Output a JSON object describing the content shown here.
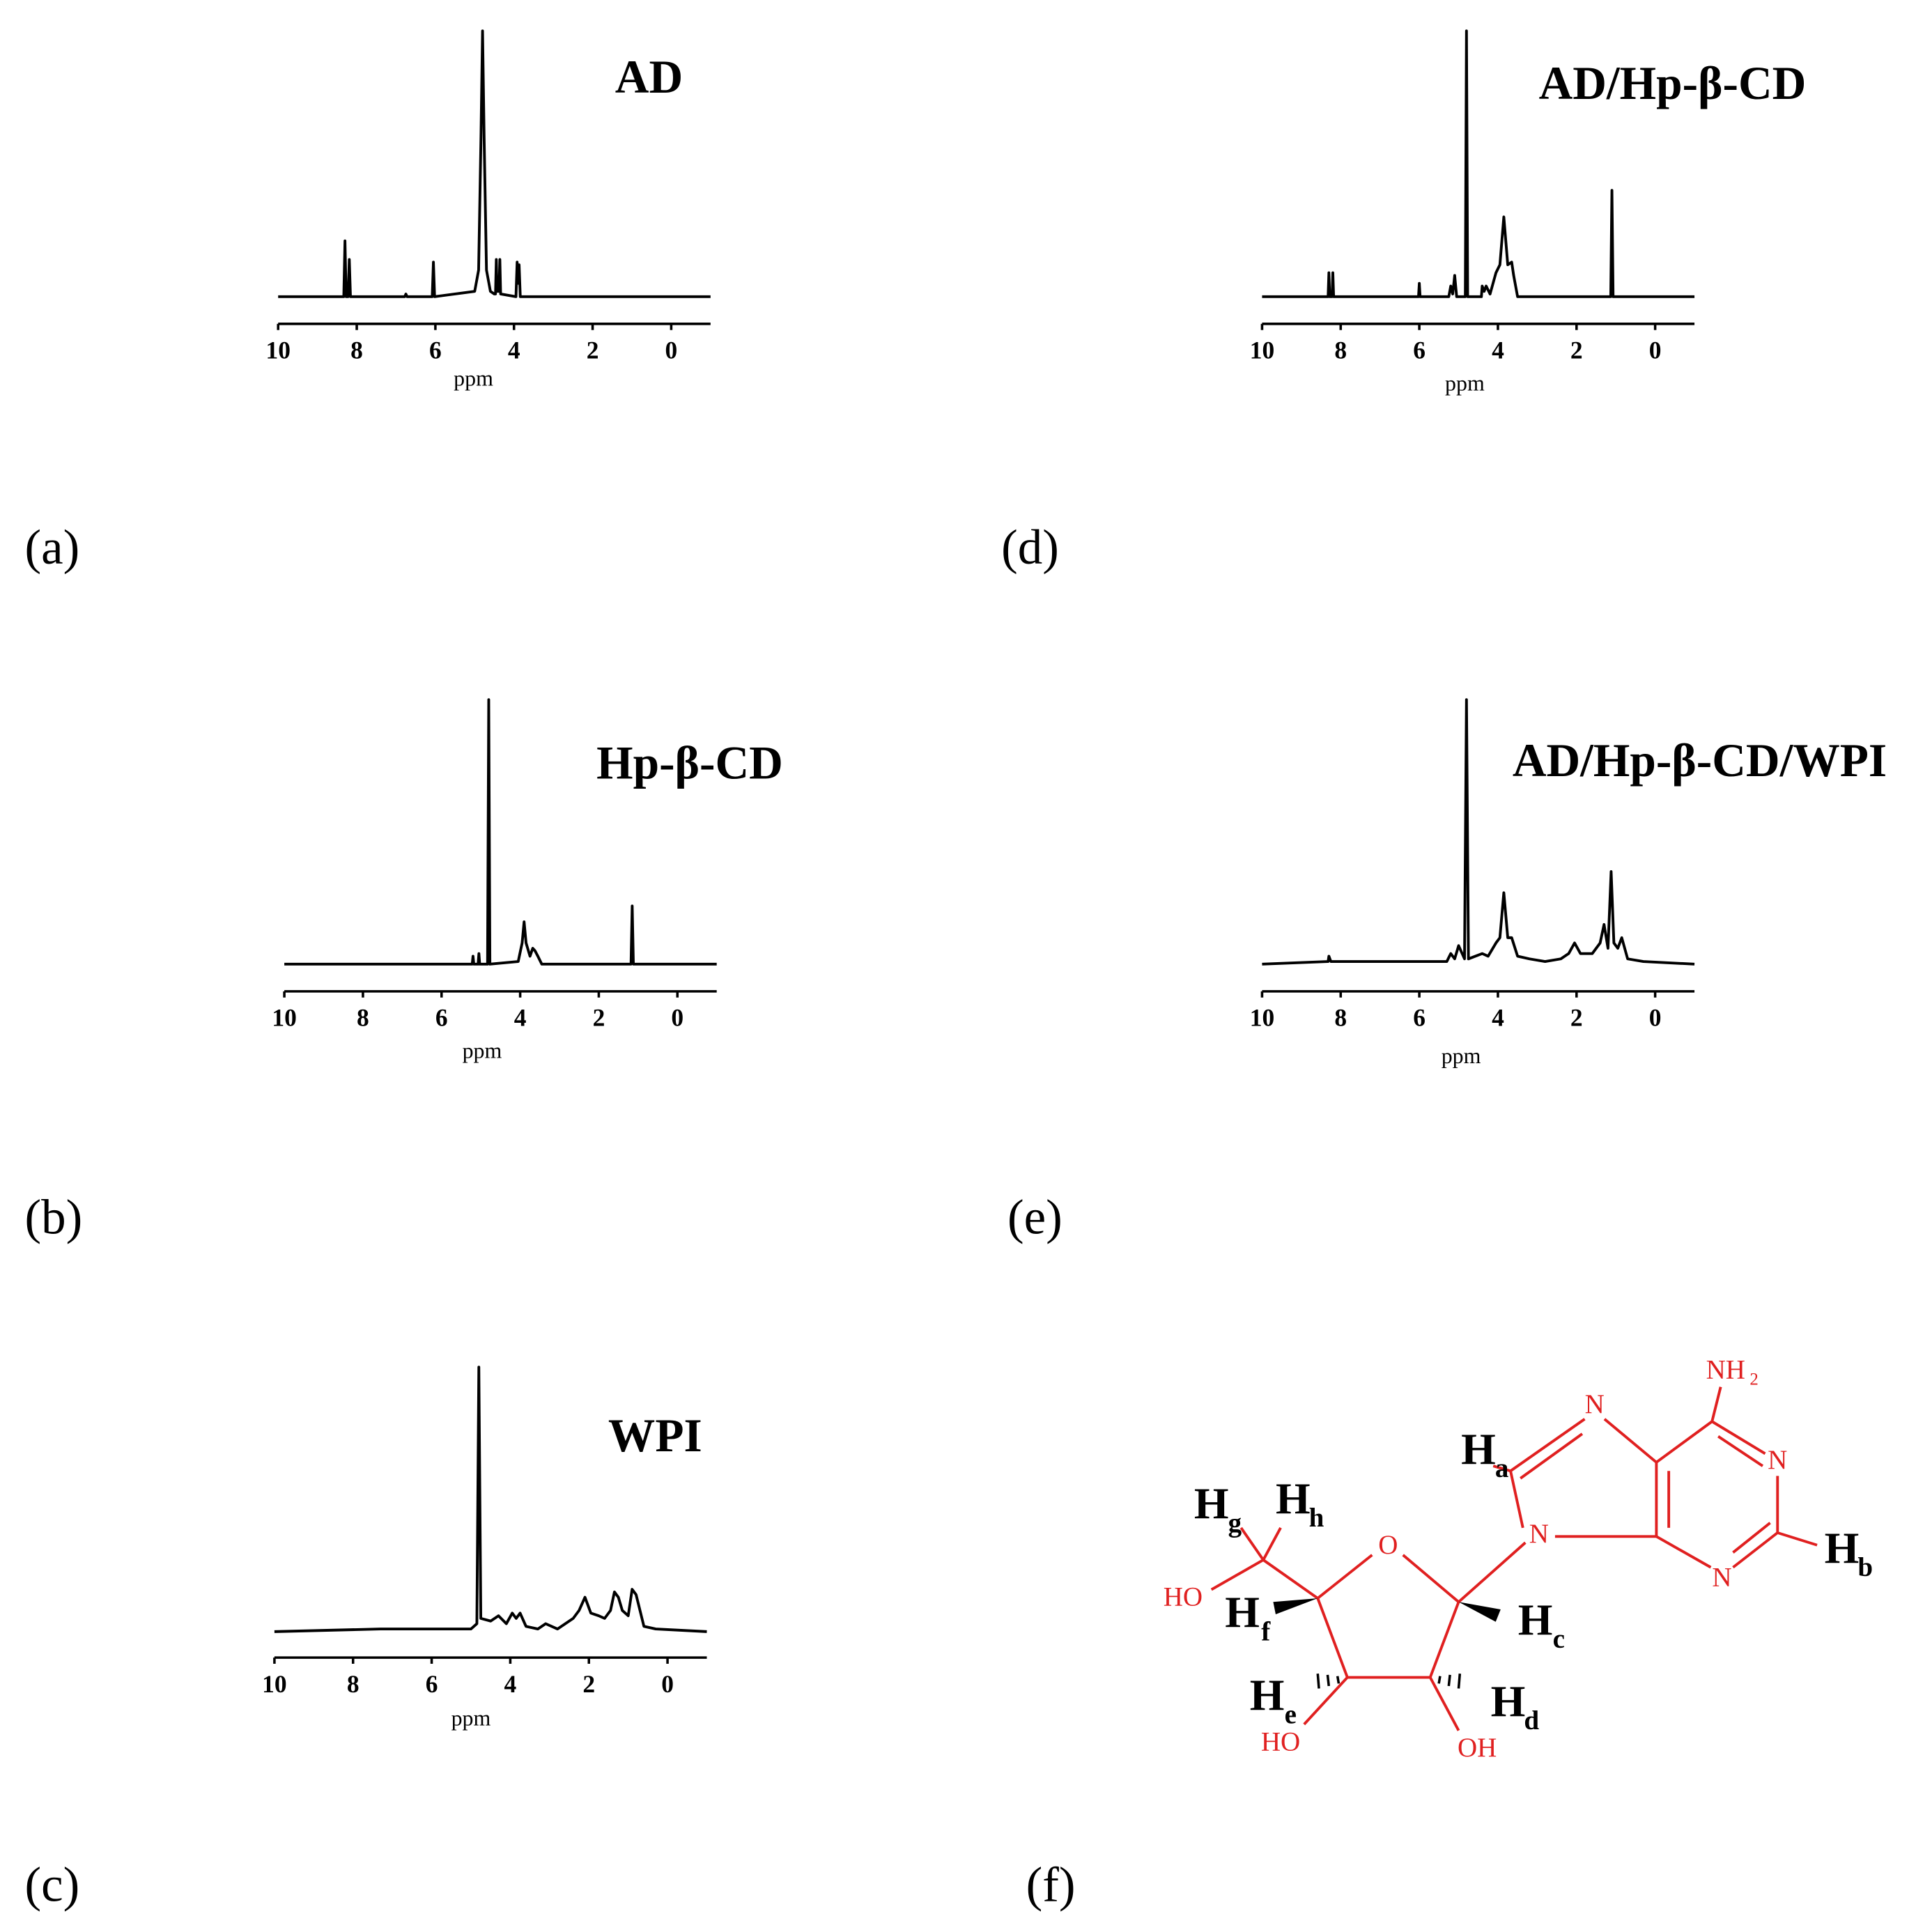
{
  "chart_data": [
    {
      "type": "line",
      "title": "AD",
      "label": "(a)",
      "xlabel": "ppm",
      "xlim": [
        10,
        -1
      ],
      "xticks": [
        10,
        8,
        6,
        4,
        2,
        0
      ],
      "ylim": [
        0,
        100
      ],
      "color": "#000000",
      "x": [
        10,
        8.33,
        8.3,
        8.27,
        8.22,
        8.19,
        8.16,
        6.78,
        6.75,
        6.72,
        6.08,
        6.05,
        6.02,
        5.0,
        4.9,
        4.84,
        4.8,
        4.76,
        4.7,
        4.6,
        4.5,
        4.47,
        4.45,
        4.43,
        4.38,
        4.36,
        4.34,
        3.95,
        3.92,
        3.9,
        3.87,
        3.84,
        -1
      ],
      "values": [
        0,
        0,
        21,
        0,
        0,
        14,
        0,
        0,
        1,
        0,
        0,
        13,
        0,
        2,
        10,
        60,
        100,
        60,
        10,
        2,
        1,
        1,
        14,
        2,
        2,
        14,
        1,
        0,
        13,
        5,
        12,
        0,
        0
      ]
    },
    {
      "type": "line",
      "title": "Hp-β-CD",
      "label": "(b)",
      "xlabel": "ppm",
      "xlim": [
        10,
        -1
      ],
      "xticks": [
        10,
        8,
        6,
        4,
        2,
        0
      ],
      "ylim": [
        0,
        100
      ],
      "color": "#000000",
      "x": [
        10,
        5.22,
        5.2,
        5.18,
        5.07,
        5.05,
        5.03,
        4.83,
        4.8,
        4.77,
        4.05,
        3.95,
        3.9,
        3.85,
        3.75,
        3.68,
        3.62,
        3.55,
        3.45,
        1.18,
        1.15,
        1.12,
        -1
      ],
      "values": [
        0,
        0,
        3,
        0,
        0,
        4,
        0,
        0,
        100,
        0,
        1,
        8,
        16,
        8,
        3,
        6,
        5,
        3,
        0,
        0,
        22,
        0,
        0
      ]
    },
    {
      "type": "line",
      "title": "WPI",
      "label": "(c)",
      "xlabel": "ppm",
      "xlim": [
        10,
        -1
      ],
      "xticks": [
        10,
        8,
        6,
        4,
        2,
        0
      ],
      "ylim": [
        0,
        100
      ],
      "color": "#000000",
      "x": [
        10,
        7.3,
        5,
        4.85,
        4.8,
        4.75,
        4.5,
        4.3,
        4.1,
        3.95,
        3.85,
        3.75,
        3.6,
        3.3,
        3.1,
        2.8,
        2.4,
        2.25,
        2.1,
        1.95,
        1.75,
        1.6,
        1.45,
        1.35,
        1.25,
        1.15,
        1.0,
        0.9,
        0.8,
        0.6,
        0.3,
        -1
      ],
      "values": [
        0,
        1,
        1,
        3,
        100,
        5,
        4,
        6,
        3,
        7,
        5,
        7,
        2,
        1,
        3,
        1,
        5,
        8,
        13,
        7,
        6,
        5,
        8,
        15,
        13,
        8,
        6,
        16,
        14,
        2,
        1,
        0
      ]
    },
    {
      "type": "line",
      "title": "AD/Hp-β-CD",
      "label": "(d)",
      "xlabel": "ppm",
      "xlim": [
        10,
        -1
      ],
      "xticks": [
        10,
        8,
        6,
        4,
        2,
        0
      ],
      "ylim": [
        0,
        100
      ],
      "color": "#000000",
      "x": [
        10,
        8.32,
        8.3,
        8.28,
        8.22,
        8.2,
        8.18,
        6.02,
        6.0,
        5.98,
        5.25,
        5.2,
        5.15,
        5.1,
        5.05,
        4.83,
        4.8,
        4.77,
        4.42,
        4.4,
        4.35,
        4.3,
        4.2,
        4.05,
        3.95,
        3.85,
        3.75,
        3.65,
        3.6,
        3.5,
        1.13,
        1.1,
        1.07,
        -1
      ],
      "values": [
        0,
        0,
        9,
        0,
        0,
        9,
        0,
        0,
        5,
        0,
        0,
        4,
        1,
        8,
        0,
        0,
        100,
        0,
        0,
        4,
        2,
        4,
        1,
        9,
        12,
        30,
        12,
        13,
        8,
        0,
        0,
        40,
        0,
        0
      ]
    },
    {
      "type": "line",
      "title": "AD/Hp-β-CD/WPI",
      "label": "(e)",
      "xlabel": "ppm",
      "xlim": [
        10,
        -1
      ],
      "xticks": [
        10,
        8,
        6,
        4,
        2,
        0
      ],
      "ylim": [
        0,
        100
      ],
      "color": "#000000",
      "x": [
        10,
        8.32,
        8.3,
        8.25,
        6.0,
        5.3,
        5.2,
        5.1,
        5.0,
        4.85,
        4.8,
        4.75,
        4.4,
        4.25,
        4.05,
        3.95,
        3.85,
        3.75,
        3.65,
        3.5,
        3.2,
        2.8,
        2.4,
        2.2,
        2.05,
        1.9,
        1.6,
        1.4,
        1.3,
        1.2,
        1.12,
        1.05,
        0.95,
        0.85,
        0.7,
        0.3,
        -1
      ],
      "values": [
        0,
        1,
        3,
        1,
        1,
        1,
        4,
        2,
        7,
        2,
        100,
        2,
        4,
        3,
        8,
        10,
        27,
        10,
        10,
        3,
        2,
        1,
        2,
        4,
        8,
        4,
        4,
        8,
        15,
        6,
        35,
        8,
        6,
        10,
        2,
        1,
        0
      ]
    }
  ],
  "structure": {
    "label": "(f)",
    "atoms": [
      "N",
      "N",
      "N",
      "N",
      "O",
      "HO",
      "HO",
      "OH"
    ],
    "amine": {
      "text": "NH",
      "sub": "2"
    },
    "hydrogens": [
      {
        "text": "H",
        "sub": "a"
      },
      {
        "text": "H",
        "sub": "b"
      },
      {
        "text": "H",
        "sub": "c"
      },
      {
        "text": "H",
        "sub": "d"
      },
      {
        "text": "H",
        "sub": "e"
      },
      {
        "text": "H",
        "sub": "f"
      },
      {
        "text": "H",
        "sub": "g"
      },
      {
        "text": "H",
        "sub": "h"
      }
    ]
  }
}
